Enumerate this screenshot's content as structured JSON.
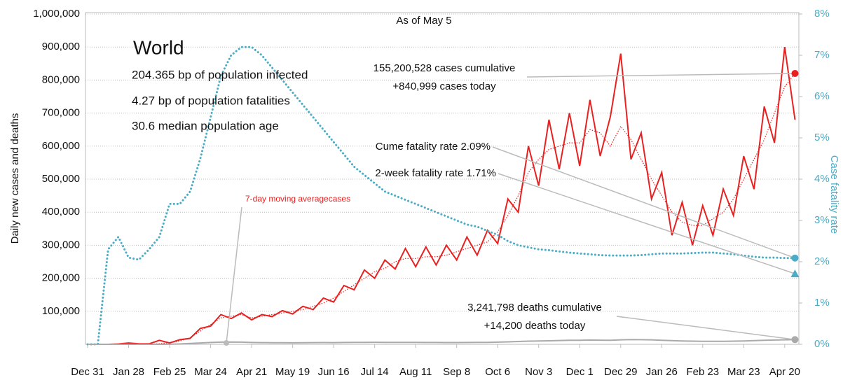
{
  "chart_data": {
    "type": "line",
    "ylabel": "Daily new cases and deaths",
    "y2label": "Case fatality rate",
    "categories": [
      "Dec 31",
      null,
      null,
      null,
      "Jan 28",
      null,
      null,
      null,
      "Feb 25",
      null,
      null,
      null,
      "Mar 24",
      null,
      null,
      null,
      "Apr 21",
      null,
      null,
      null,
      "May 19",
      null,
      null,
      null,
      "Jun 16",
      null,
      null,
      null,
      "Jul 14",
      null,
      null,
      null,
      "Aug 11",
      null,
      null,
      null,
      "Sep 8",
      null,
      null,
      null,
      "Oct 6",
      null,
      null,
      null,
      "Nov 3",
      null,
      null,
      null,
      "Dec 1",
      null,
      null,
      null,
      "Dec 29",
      null,
      null,
      null,
      "Jan 26",
      null,
      null,
      null,
      "Feb 23",
      null,
      null,
      null,
      "Mar 23",
      null,
      null,
      null,
      "Apr 20",
      null
    ],
    "series": [
      {
        "color": "#e8201f",
        "style": "solid",
        "values": [
          0,
          0,
          0,
          1000,
          4000,
          1500,
          1500,
          12000,
          4000,
          14000,
          18000,
          48000,
          55000,
          90000,
          78000,
          95000,
          74000,
          90000,
          84000,
          102000,
          92000,
          115000,
          105000,
          140000,
          128000,
          178000,
          165000,
          225000,
          200000,
          255000,
          228000,
          290000,
          235000,
          295000,
          240000,
          300000,
          255000,
          325000,
          270000,
          345000,
          305000,
          440000,
          400000,
          600000,
          480000,
          680000,
          530000,
          700000,
          540000,
          740000,
          570000,
          690000,
          880000,
          560000,
          640000,
          440000,
          520000,
          330000,
          430000,
          300000,
          420000,
          330000,
          470000,
          390000,
          570000,
          470000,
          720000,
          610000,
          900000,
          680000
        ]
      },
      {
        "name": "7-day moving averagecases",
        "color": "#e8201f",
        "style": "dotted",
        "values": [
          0,
          0,
          0,
          2000,
          3000,
          2000,
          1000,
          2000,
          5000,
          10000,
          20000,
          40000,
          60000,
          80000,
          85000,
          90000,
          80000,
          85000,
          90000,
          95000,
          100000,
          105000,
          115000,
          125000,
          140000,
          160000,
          180000,
          200000,
          220000,
          230000,
          250000,
          260000,
          260000,
          265000,
          265000,
          270000,
          280000,
          290000,
          300000,
          310000,
          340000,
          390000,
          450000,
          520000,
          560000,
          590000,
          600000,
          610000,
          610000,
          650000,
          640000,
          600000,
          660000,
          620000,
          560000,
          500000,
          450000,
          400000,
          370000,
          360000,
          360000,
          380000,
          400000,
          440000,
          500000,
          560000,
          620000,
          700000,
          780000,
          820000
        ]
      },
      {
        "color": "#4bacc6",
        "style": "dotted",
        "axis": "y2",
        "values": [
          0,
          0,
          2.3,
          2.6,
          2.1,
          2.05,
          2.3,
          2.6,
          3.4,
          3.4,
          3.7,
          4.5,
          5.5,
          6.5,
          7.0,
          7.2,
          7.2,
          7.0,
          6.7,
          6.4,
          6.1,
          5.8,
          5.5,
          5.2,
          4.9,
          4.6,
          4.3,
          4.1,
          3.9,
          3.7,
          3.6,
          3.5,
          3.4,
          3.3,
          3.2,
          3.1,
          3.0,
          2.9,
          2.85,
          2.75,
          2.65,
          2.5,
          2.4,
          2.35,
          2.3,
          2.28,
          2.25,
          2.22,
          2.2,
          2.18,
          2.16,
          2.15,
          2.15,
          2.15,
          2.16,
          2.18,
          2.2,
          2.2,
          2.2,
          2.21,
          2.22,
          2.22,
          2.2,
          2.18,
          2.15,
          2.12,
          2.1,
          2.1,
          2.09,
          2.09
        ]
      },
      {
        "color": "#aaaaaa",
        "style": "solid",
        "values": [
          0,
          0,
          0,
          0,
          0,
          0,
          0,
          100,
          300,
          1000,
          2500,
          4000,
          5500,
          6500,
          7000,
          6500,
          5500,
          5000,
          4800,
          4600,
          4500,
          4700,
          5000,
          5200,
          5000,
          5500,
          5800,
          6000,
          6200,
          6000,
          5900,
          5800,
          5700,
          5600,
          5500,
          5400,
          5400,
          5500,
          5700,
          6000,
          6500,
          7500,
          8500,
          9500,
          10000,
          10500,
          11500,
          12000,
          12000,
          13000,
          12500,
          12000,
          13500,
          14500,
          14000,
          13500,
          12000,
          11000,
          10000,
          9500,
          9000,
          9000,
          9000,
          9500,
          10000,
          11000,
          12000,
          13000,
          13500,
          14200
        ]
      }
    ],
    "ylim": [
      0,
      1000000
    ],
    "yticks": [
      {
        "value": 100000,
        "label": "100,000"
      },
      {
        "value": 200000,
        "label": "200,000"
      },
      {
        "value": 300000,
        "label": "300,000"
      },
      {
        "value": 400000,
        "label": "400,000"
      },
      {
        "value": 500000,
        "label": "500,000"
      },
      {
        "value": 600000,
        "label": "600,000"
      },
      {
        "value": 700000,
        "label": "700,000"
      },
      {
        "value": 800000,
        "label": "800,000"
      },
      {
        "value": 900000,
        "label": "900,000"
      },
      {
        "value": 1000000,
        "label": "1,000,000"
      }
    ],
    "y2lim": [
      0,
      8
    ],
    "y2ticks": [
      {
        "value": 0,
        "label": "0%"
      },
      {
        "value": 1,
        "label": "1%"
      },
      {
        "value": 2,
        "label": "2%"
      },
      {
        "value": 3,
        "label": "3%"
      },
      {
        "value": 4,
        "label": "4%"
      },
      {
        "value": 5,
        "label": "5%"
      },
      {
        "value": 6,
        "label": "6%"
      },
      {
        "value": 7,
        "label": "7%"
      },
      {
        "value": 8,
        "label": "8%"
      }
    ],
    "grid": true,
    "annotations": [
      {
        "text": "As of May 5"
      },
      {
        "text": "World"
      },
      {
        "text": "204.365 bp of population infected"
      },
      {
        "text": "4.27 bp of population fatalities"
      },
      {
        "text": "30.6 median population age"
      },
      {
        "text": "155,200,528 cases cumulative"
      },
      {
        "text": "+840,999 cases today"
      },
      {
        "text": "Cume fatality rate 2.09%"
      },
      {
        "text": "2-week fatality rate 1.71%",
        "value": 1.71,
        "axis": "y2"
      },
      {
        "text": "3,241,798 deaths cumulative"
      },
      {
        "text": "+14,200 deaths today"
      }
    ]
  }
}
